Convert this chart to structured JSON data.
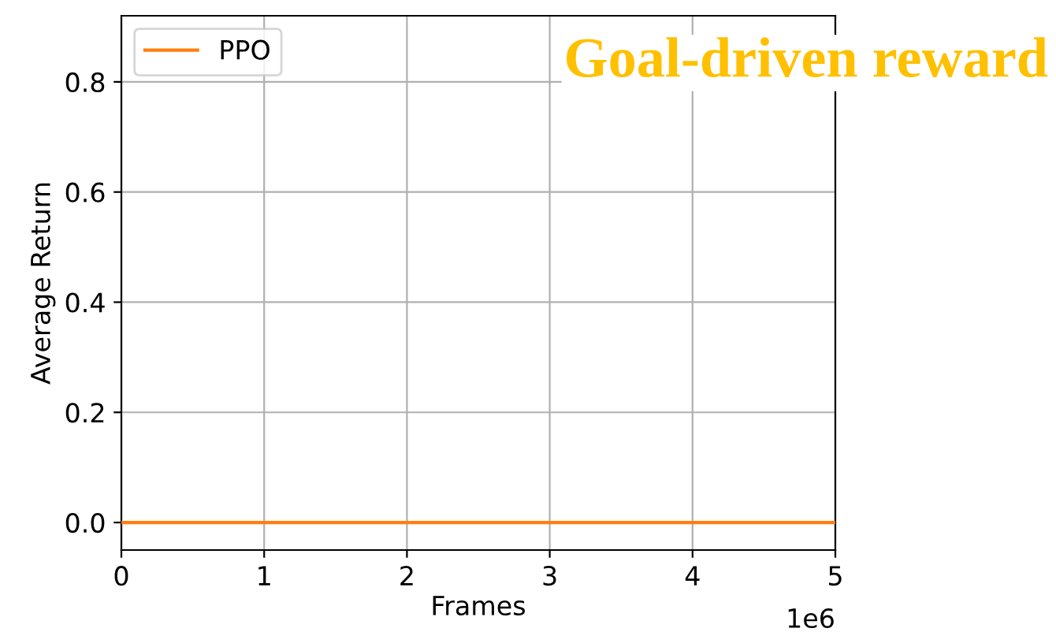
{
  "chart_data": {
    "type": "line",
    "title": "Goal-driven reward",
    "xlabel": "Frames",
    "ylabel": "Average Return",
    "x": [
      0,
      5
    ],
    "series": [
      {
        "name": "PPO",
        "color": "#ff7f0e",
        "values": [
          0,
          0
        ]
      }
    ],
    "xlim": [
      0,
      5
    ],
    "xticks": [
      0,
      1,
      2,
      3,
      4,
      5
    ],
    "ylim": [
      -0.05,
      0.92
    ],
    "yticks": [
      {
        "value": 0,
        "label": "0.0"
      },
      {
        "value": 0.2,
        "label": "0.2"
      },
      {
        "value": 0.4,
        "label": "0.4"
      },
      {
        "value": 0.6,
        "label": "0.6"
      },
      {
        "value": 0.8,
        "label": "0.8"
      }
    ],
    "annotations": [
      "1e6"
    ],
    "grid": true,
    "legend": "top left"
  }
}
